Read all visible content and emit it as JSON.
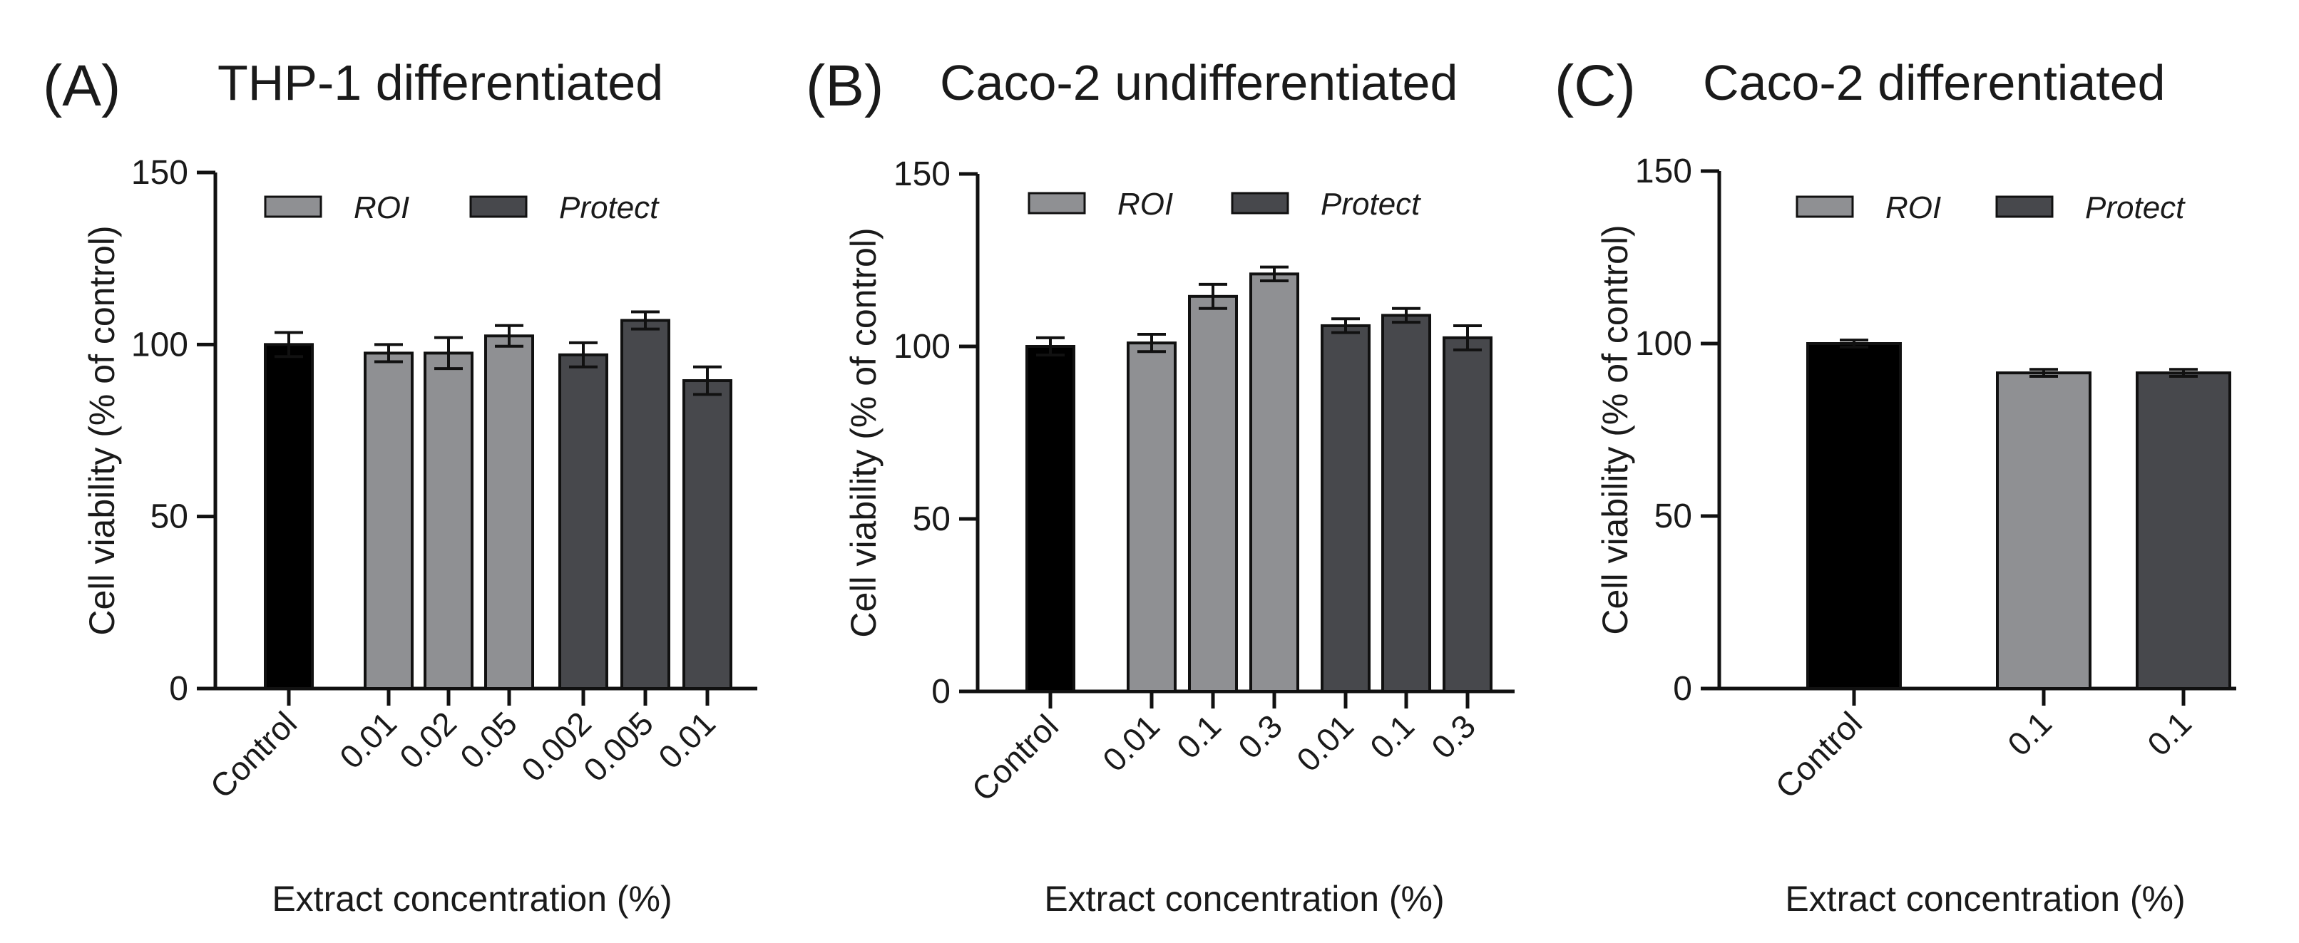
{
  "chart_data": [
    {
      "type": "bar",
      "panel_label": "(A)",
      "title": "THP-1 differentiated",
      "xlabel": "Extract concentration (%)",
      "ylabel": "Cell viability (% of control)",
      "ylim": [
        0,
        150
      ],
      "yticks": [
        0,
        50,
        100,
        150
      ],
      "legend": [
        {
          "name": "ROI",
          "color": "#8f9093"
        },
        {
          "name": "Protect",
          "color": "#47484c"
        }
      ],
      "legend_position": "top-left",
      "categories": [
        "Control",
        "0.01",
        "0.02",
        "0.05",
        "0.002",
        "0.005",
        "0.01"
      ],
      "groups": [
        "Control",
        "ROI",
        "ROI",
        "ROI",
        "Protect",
        "Protect",
        "Protect"
      ],
      "values": [
        100,
        97.5,
        97.5,
        102.5,
        97,
        107,
        89.5
      ],
      "errors": [
        3.5,
        2.5,
        4.5,
        3,
        3.5,
        2.5,
        4
      ]
    },
    {
      "type": "bar",
      "panel_label": "(B)",
      "title": "Caco-2 undifferentiated",
      "xlabel": "Extract concentration (%)",
      "ylabel": "Cell viability (% of control)",
      "ylim": [
        0,
        150
      ],
      "yticks": [
        0,
        50,
        100,
        150
      ],
      "legend": [
        {
          "name": "ROI",
          "color": "#8f9093"
        },
        {
          "name": "Protect",
          "color": "#47484c"
        }
      ],
      "legend_position": "top-left",
      "categories": [
        "Control",
        "0.01",
        "0.1",
        "0.3",
        "0.01",
        "0.1",
        "0.3"
      ],
      "groups": [
        "Control",
        "ROI",
        "ROI",
        "ROI",
        "Protect",
        "Protect",
        "Protect"
      ],
      "values": [
        100,
        101,
        114.5,
        121,
        106,
        109,
        102.5
      ],
      "errors": [
        2.5,
        2.5,
        3.5,
        2,
        2,
        2,
        3.5
      ]
    },
    {
      "type": "bar",
      "panel_label": "(C)",
      "title": "Caco-2 differentiated",
      "xlabel": "Extract concentration (%)",
      "ylabel": "Cell viability (% of control)",
      "ylim": [
        0,
        150
      ],
      "yticks": [
        0,
        50,
        100,
        150
      ],
      "legend": [
        {
          "name": "ROI",
          "color": "#8f9093"
        },
        {
          "name": "Protect",
          "color": "#47484c"
        }
      ],
      "legend_position": "top-left",
      "categories": [
        "Control",
        "0.1",
        "0.1"
      ],
      "groups": [
        "Control",
        "ROI",
        "Protect"
      ],
      "values": [
        100,
        91.5,
        91.5
      ],
      "errors": [
        1,
        1,
        1
      ]
    }
  ],
  "colors": {
    "Control": "#000000",
    "ROI": "#8f9093",
    "Protect": "#47484c",
    "axis": "#111111"
  }
}
